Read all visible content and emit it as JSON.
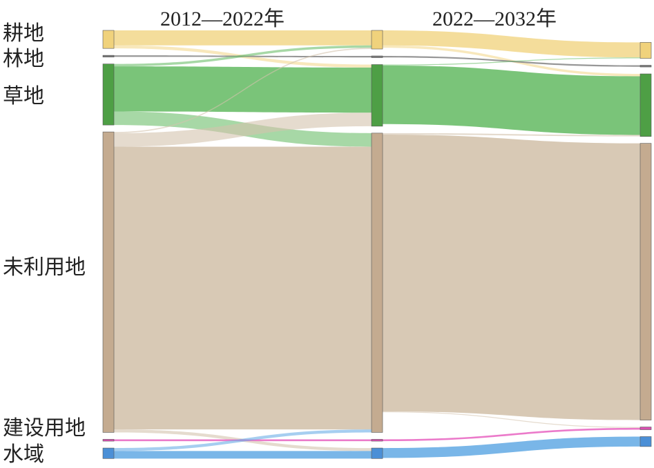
{
  "periods": [
    "2012—2022年",
    "2022—2032年"
  ],
  "categories": [
    {
      "key": "cultivated",
      "label": "耕地",
      "color": "#f3d990",
      "node_color": "#f0d27c"
    },
    {
      "key": "forest",
      "label": "林地",
      "color": "#8c8c8c",
      "node_color": "#7a7a7a"
    },
    {
      "key": "grassland",
      "label": "草地",
      "color": "#6cbe6a",
      "node_color": "#4e9f45"
    },
    {
      "key": "unused",
      "label": "未利用地",
      "color": "#d4c3ad",
      "node_color": "#c4ab90"
    },
    {
      "key": "construction",
      "label": "建设用地",
      "color": "#e96bc4",
      "node_color": "#d84fb0"
    },
    {
      "key": "water",
      "label": "水域",
      "color": "#6aaee6",
      "node_color": "#4b8fd6"
    }
  ],
  "chart_data": {
    "type": "sankey",
    "stages": [
      "2012",
      "2022",
      "2032"
    ],
    "flows": [
      {
        "stage": 0,
        "from": "cultivated",
        "to": "cultivated",
        "value": 5
      },
      {
        "stage": 0,
        "from": "cultivated",
        "to": "grassland",
        "value": 1
      },
      {
        "stage": 0,
        "from": "forest",
        "to": "forest",
        "value": 0.5
      },
      {
        "stage": 0,
        "from": "grassland",
        "to": "cultivated",
        "value": 0.8
      },
      {
        "stage": 0,
        "from": "grassland",
        "to": "grassland",
        "value": 15
      },
      {
        "stage": 0,
        "from": "grassland",
        "to": "unused",
        "value": 4.5
      },
      {
        "stage": 0,
        "from": "unused",
        "to": "cultivated",
        "value": 0.4
      },
      {
        "stage": 0,
        "from": "unused",
        "to": "grassland",
        "value": 4.5
      },
      {
        "stage": 0,
        "from": "unused",
        "to": "unused",
        "value": 94
      },
      {
        "stage": 0,
        "from": "unused",
        "to": "water",
        "value": 1
      },
      {
        "stage": 0,
        "from": "construction",
        "to": "construction",
        "value": 0.6
      },
      {
        "stage": 0,
        "from": "water",
        "to": "unused",
        "value": 1
      },
      {
        "stage": 0,
        "from": "water",
        "to": "water",
        "value": 2.5
      },
      {
        "stage": 1,
        "from": "cultivated",
        "to": "cultivated",
        "value": 5
      },
      {
        "stage": 1,
        "from": "cultivated",
        "to": "grassland",
        "value": 0.8
      },
      {
        "stage": 1,
        "from": "forest",
        "to": "forest",
        "value": 0.5
      },
      {
        "stage": 1,
        "from": "grassland",
        "to": "cultivated",
        "value": 0.3
      },
      {
        "stage": 1,
        "from": "grassland",
        "to": "grassland",
        "value": 19.5
      },
      {
        "stage": 1,
        "from": "unused",
        "to": "grassland",
        "value": 0.5
      },
      {
        "stage": 1,
        "from": "unused",
        "to": "unused",
        "value": 92
      },
      {
        "stage": 1,
        "from": "unused",
        "to": "construction",
        "value": 0.3
      },
      {
        "stage": 1,
        "from": "construction",
        "to": "construction",
        "value": 0.6
      },
      {
        "stage": 1,
        "from": "water",
        "to": "water",
        "value": 3.3
      }
    ]
  }
}
